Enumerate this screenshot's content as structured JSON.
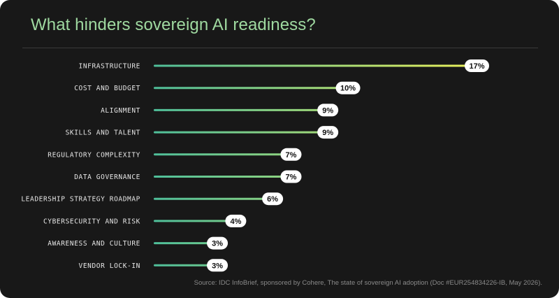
{
  "title": "What hinders sovereign AI readiness?",
  "source": "Source: IDC InfoBrief, sponsored by Cohere, The state of sovereign AI adoption (Doc #EUR254834226-IB, May 2026).",
  "colors": {
    "title": "#9fd9a0",
    "bar_start": "#4fbf9a",
    "bar_end": "#e6ef5c",
    "pill": "#ffffff",
    "background": "#181818"
  },
  "chart_data": {
    "type": "bar",
    "orientation": "horizontal",
    "title": "What hinders sovereign AI readiness?",
    "categories": [
      "INFRASTRUCTURE",
      "COST AND BUDGET",
      "ALIGNMENT",
      "SKILLS AND TALENT",
      "REGULATORY COMPLEXITY",
      "DATA GOVERNANCE",
      "LEADERSHIP STRATEGY ROADMAP",
      "CYBERSECURITY AND RISK",
      "AWARENESS AND CULTURE",
      "VENDOR LOCK-IN"
    ],
    "values": [
      17,
      10,
      9,
      9,
      7,
      7,
      6,
      4,
      3,
      3
    ],
    "value_labels": [
      "17%",
      "10%",
      "9%",
      "9%",
      "7%",
      "7%",
      "6%",
      "4%",
      "3%",
      "3%"
    ],
    "unit": "%",
    "xlim": [
      0,
      17
    ],
    "grid": false,
    "legend": "none"
  }
}
